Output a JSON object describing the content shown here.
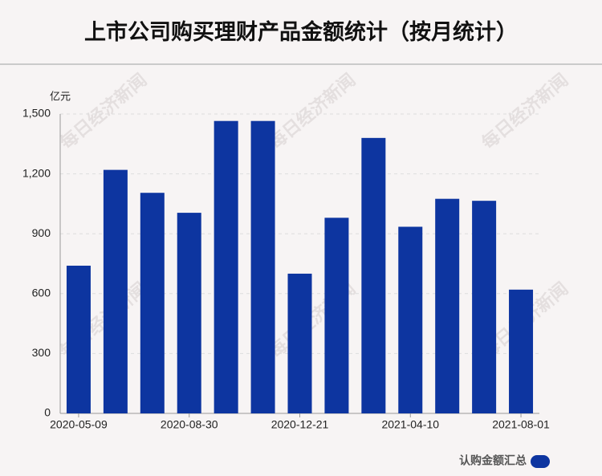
{
  "chart_data": {
    "type": "bar",
    "title": "上市公司购买理财产品金额统计（按月统计）",
    "y_label": "亿元",
    "watermark": "每日经济新闻",
    "categories": [
      "2020-05-09",
      null,
      null,
      "2020-08-30",
      null,
      null,
      "2020-12-21",
      null,
      null,
      "2021-04-10",
      null,
      null,
      "2021-08-01"
    ],
    "series": [
      {
        "name": "认购金额汇总",
        "color": "#0d35a0",
        "values": [
          740,
          1220,
          1105,
          1005,
          1465,
          1465,
          700,
          980,
          1380,
          935,
          1075,
          1065,
          620
        ]
      }
    ],
    "ylim": [
      0,
      1500
    ],
    "yticks": [
      0,
      300,
      600,
      900,
      {
        "value": 1200,
        "label": "1,200"
      },
      {
        "value": 1500,
        "label": "1,500"
      }
    ],
    "grid": true,
    "legend": "bottom-right"
  }
}
